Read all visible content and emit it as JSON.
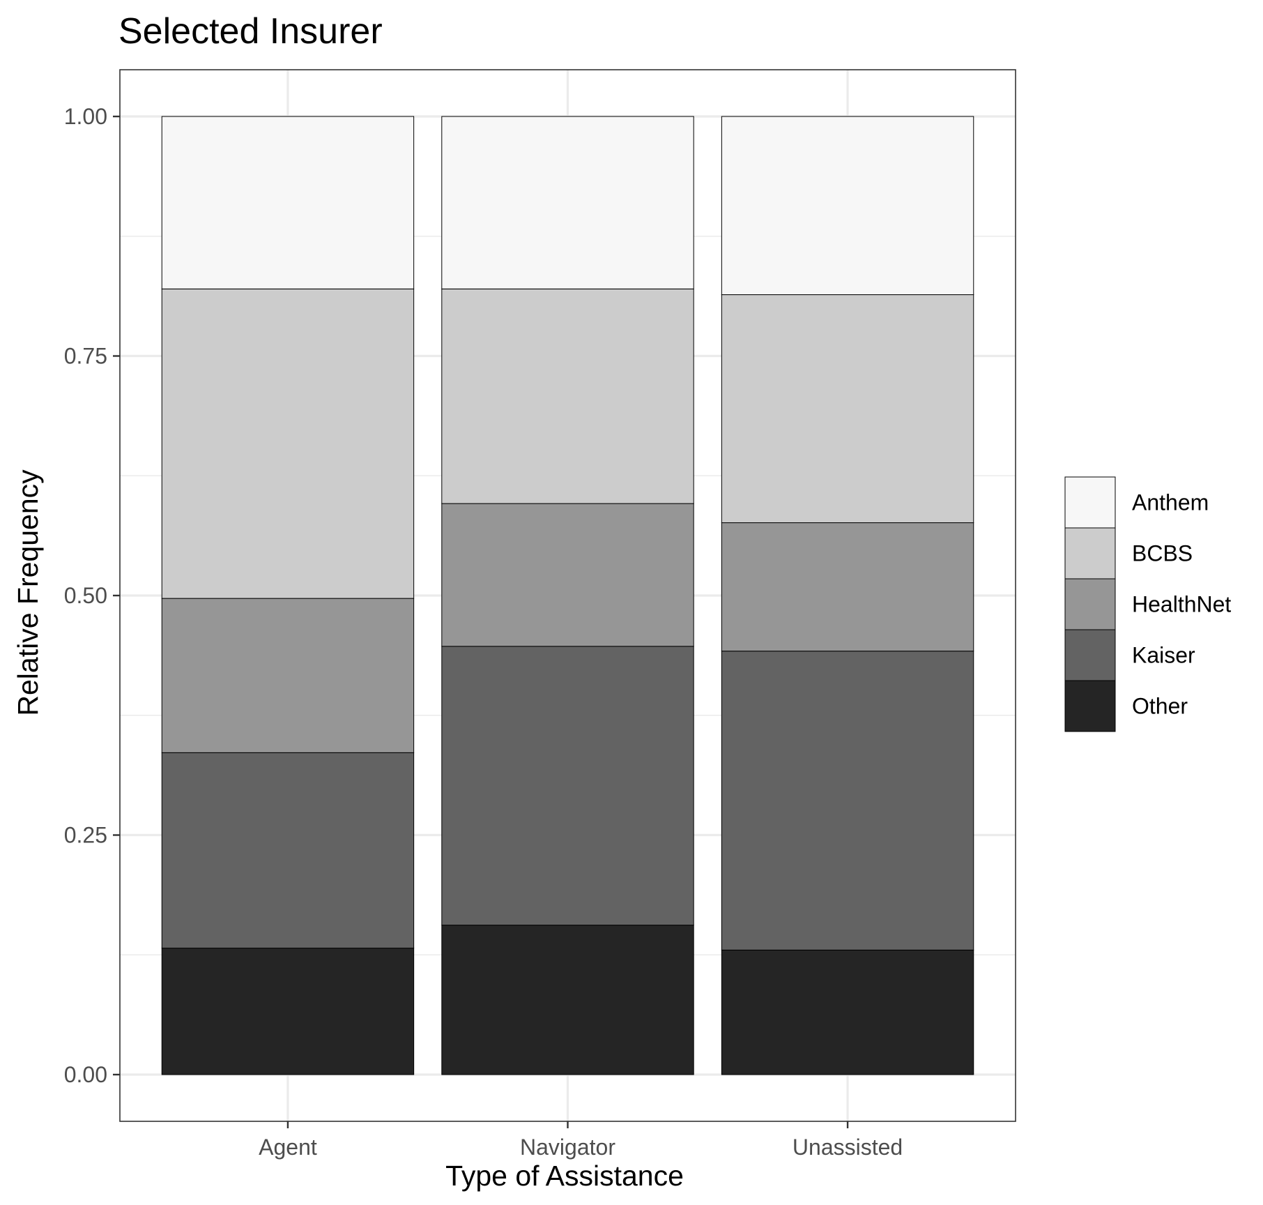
{
  "chart_data": {
    "type": "bar",
    "stacked": true,
    "title": "Selected Insurer",
    "xlabel": "Type of Assistance",
    "ylabel": "Relative Frequency",
    "categories": [
      "Agent",
      "Navigator",
      "Unassisted"
    ],
    "ylim": [
      0,
      1
    ],
    "yticks": [
      "0.00",
      "0.25",
      "0.50",
      "0.75",
      "1.00"
    ],
    "grid": true,
    "legend_position": "right",
    "series": [
      {
        "name": "Other",
        "color": "#252525",
        "values": [
          0.132,
          0.156,
          0.13
        ]
      },
      {
        "name": "Kaiser",
        "color": "#636363",
        "values": [
          0.204,
          0.291,
          0.312
        ]
      },
      {
        "name": "HealthNet",
        "color": "#969696",
        "values": [
          0.161,
          0.149,
          0.134
        ]
      },
      {
        "name": "BCBS",
        "color": "#cccccc",
        "values": [
          0.323,
          0.224,
          0.238
        ]
      },
      {
        "name": "Anthem",
        "color": "#f7f7f7",
        "values": [
          0.18,
          0.18,
          0.186
        ]
      }
    ],
    "legend_order": [
      "Anthem",
      "BCBS",
      "HealthNet",
      "Kaiser",
      "Other"
    ]
  }
}
